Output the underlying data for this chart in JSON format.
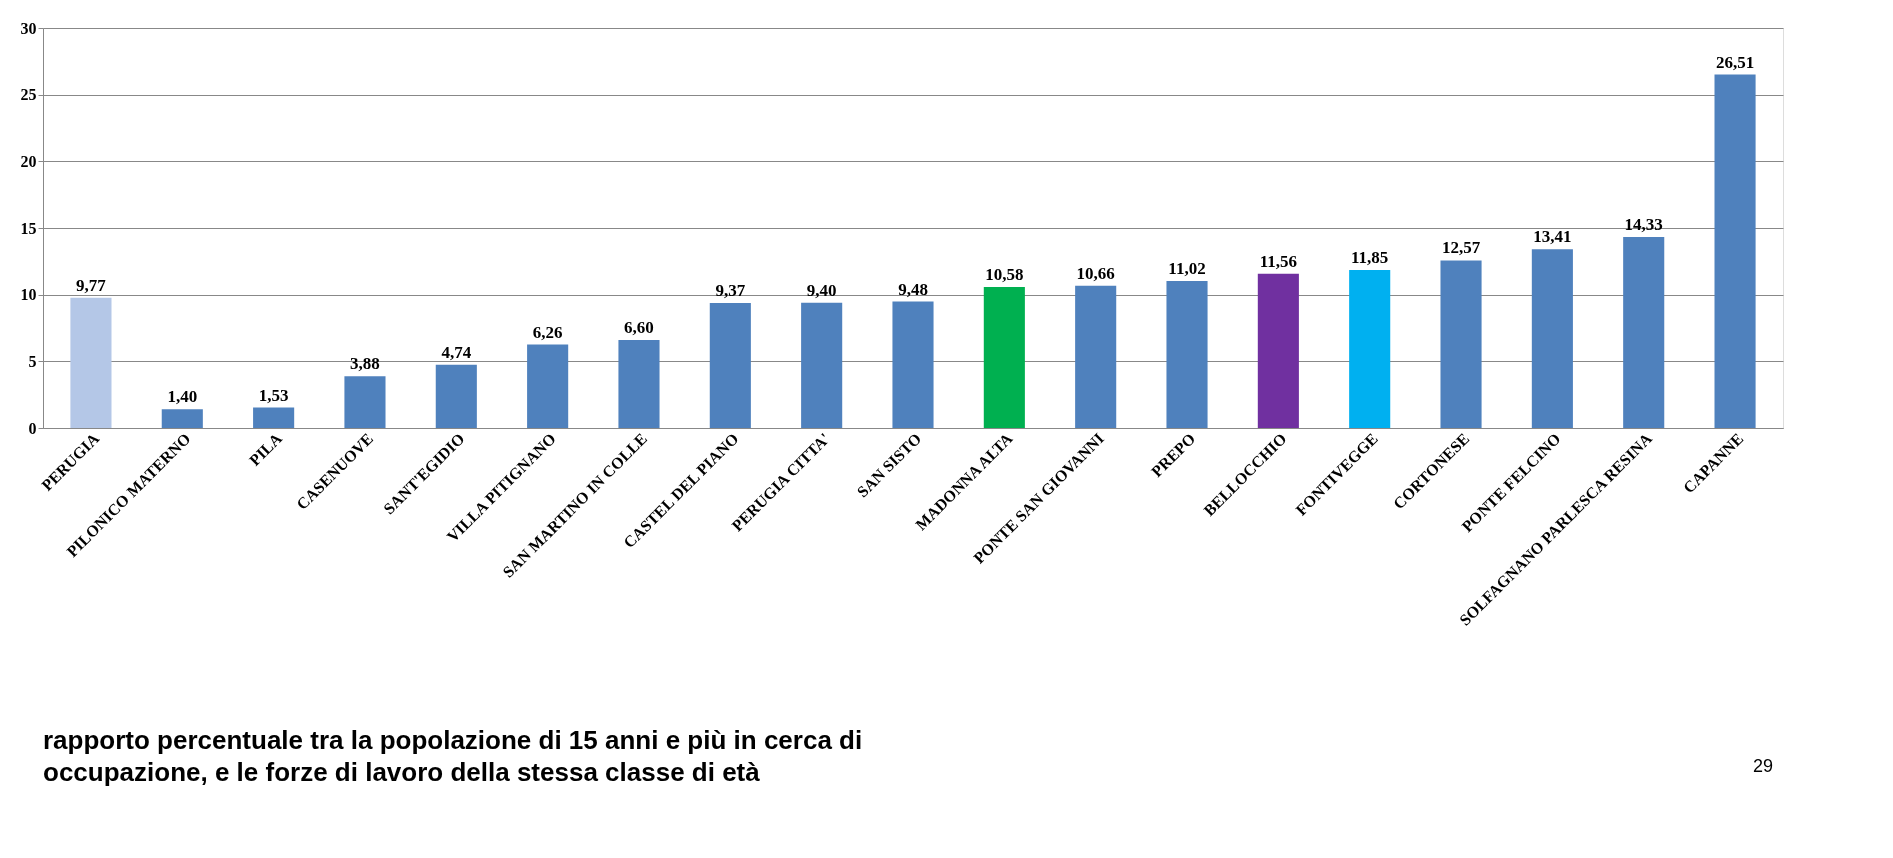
{
  "chart_data": {
    "type": "bar",
    "categories": [
      "PERUGIA",
      "PILONICO MATERNO",
      "PILA",
      "CASENUOVE",
      "SANT'EGIDIO",
      "VILLA PITIGNANO",
      "SAN MARTINO IN COLLE",
      "CASTEL DEL PIANO",
      "PERUGIA CITTA'",
      "SAN SISTO",
      "MADONNA ALTA",
      "PONTE SAN GIOVANNI",
      "PREPO",
      "BELLOCCHIO",
      "FONTIVEGGE",
      "CORTONESE",
      "PONTE FELCINO",
      "SOLFAGNANO PARLESCA RESINA",
      "CAPANNE"
    ],
    "values": [
      9.77,
      1.4,
      1.53,
      3.88,
      4.74,
      6.26,
      6.6,
      9.37,
      9.4,
      9.48,
      10.58,
      10.66,
      11.02,
      11.56,
      11.85,
      12.57,
      13.41,
      14.33,
      26.51
    ],
    "colors": [
      "#b4c7e7",
      "#4f81bd",
      "#4f81bd",
      "#4f81bd",
      "#4f81bd",
      "#4f81bd",
      "#4f81bd",
      "#4f81bd",
      "#4f81bd",
      "#4f81bd",
      "#00b050",
      "#4f81bd",
      "#4f81bd",
      "#7030a0",
      "#00b0f0",
      "#4f81bd",
      "#4f81bd",
      "#4f81bd",
      "#4f81bd"
    ],
    "value_labels": [
      "9,77",
      "1,40",
      "1,53",
      "3,88",
      "4,74",
      "6,26",
      "6,60",
      "9,37",
      "9,40",
      "9,48",
      "10,58",
      "10,66",
      "11,02",
      "11,56",
      "11,85",
      "12,57",
      "13,41",
      "14,33",
      "26,51"
    ],
    "ylim": [
      0,
      30
    ],
    "yticks": [
      0,
      5,
      10,
      15,
      20,
      25,
      30
    ],
    "grid": "y",
    "annotations": [
      "rapporto percentuale tra la popolazione di 15 anni e più in cerca di\noccupazione, e le forze di lavoro della stessa classe di età",
      "29"
    ]
  }
}
